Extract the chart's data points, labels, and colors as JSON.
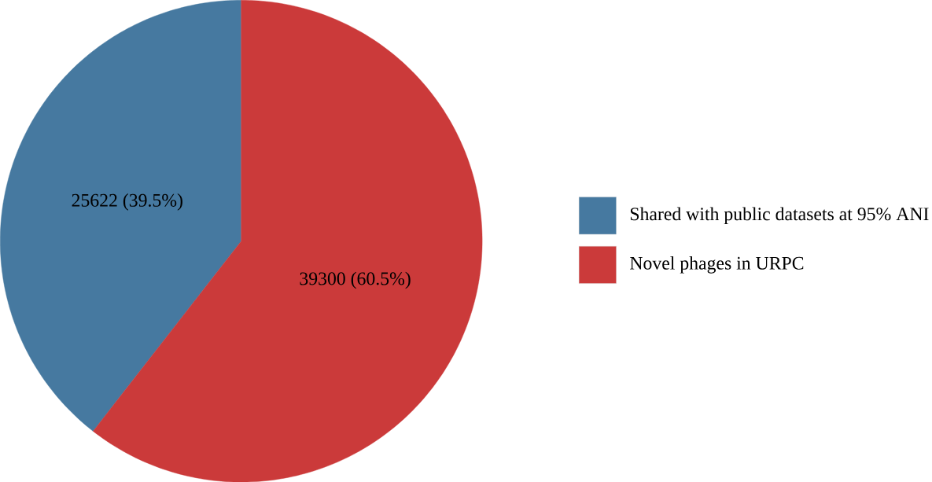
{
  "chart_data": {
    "type": "pie",
    "categories": [
      "Shared with public datasets at 95% ANI",
      "Novel phages in URPC"
    ],
    "values": [
      25622,
      39300
    ],
    "colors": [
      "#4679a0",
      "#cb3a3a"
    ],
    "value_labels": [
      "25622 (39.5%)",
      "39300 (60.5%)"
    ],
    "legend": "right"
  }
}
